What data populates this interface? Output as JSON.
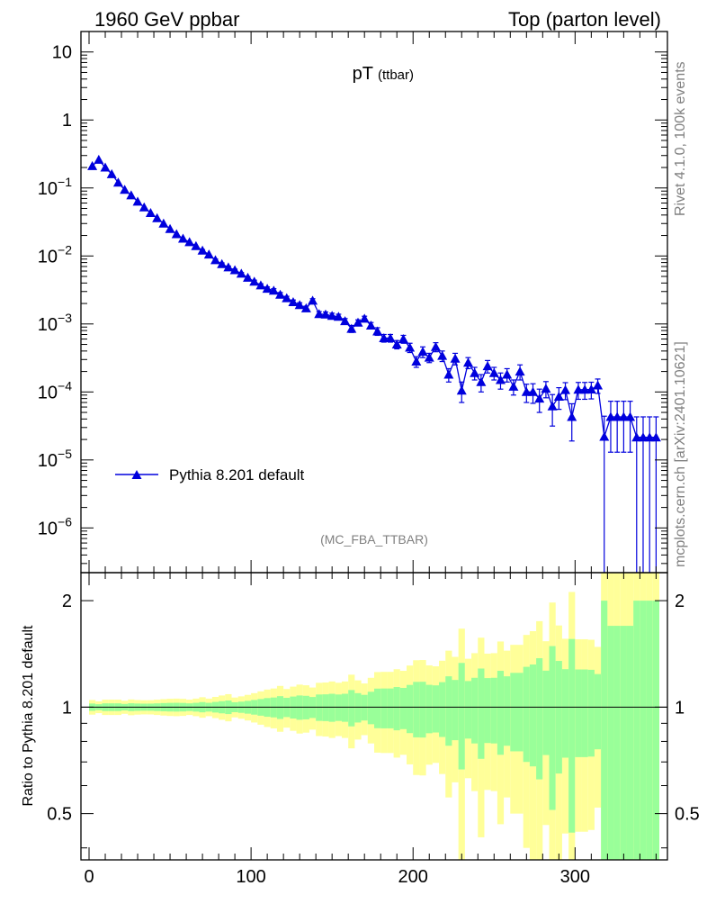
{
  "header": {
    "left": "1960 GeV ppbar",
    "right": "Top (parton level)"
  },
  "plot_title": {
    "main": "pT",
    "sub": "(ttbar)"
  },
  "side_labels": {
    "rivet": "Rivet 4.1.0,  100k events",
    "mcplots": "mcplots.cern.ch [arXiv:2401.10621]"
  },
  "analysis_id": "(MC_FBA_TTBAR)",
  "legend": {
    "label": "Pythia 8.201 default"
  },
  "ratio_ylabel": "Ratio to Pythia 8.201 default",
  "colors": {
    "series": "#0000dd",
    "band_outer": "#ffff99",
    "band_inner": "#99ff99"
  },
  "chart_data": {
    "type": "line",
    "title": "pT (ttbar)",
    "xlabel": "",
    "ylabel": "",
    "xlim": [
      -5,
      357
    ],
    "ylim": [
      2.2e-07,
      20
    ],
    "yscale": "log",
    "x_ticks": [
      "0",
      "100",
      "200",
      "300"
    ],
    "y_ticks": [
      {
        "value": 10,
        "label": "10"
      },
      {
        "value": 1,
        "label": "1"
      },
      {
        "value": 0.1,
        "base": "10",
        "exp": "−1"
      },
      {
        "value": 0.01,
        "base": "10",
        "exp": "−2"
      },
      {
        "value": 0.001,
        "base": "10",
        "exp": "−3"
      },
      {
        "value": 0.0001,
        "base": "10",
        "exp": "−4"
      },
      {
        "value": 1e-05,
        "base": "10",
        "exp": "−5"
      },
      {
        "value": 1e-06,
        "base": "10",
        "exp": "−6"
      }
    ],
    "series": [
      {
        "name": "Pythia 8.201 default",
        "marker": "triangle-up",
        "bin_width": 4,
        "x": [
          2,
          6,
          10,
          14,
          18,
          22,
          26,
          30,
          34,
          38,
          42,
          46,
          50,
          54,
          58,
          62,
          66,
          70,
          74,
          78,
          82,
          86,
          90,
          94,
          98,
          102,
          106,
          110,
          114,
          118,
          122,
          126,
          130,
          134,
          138,
          142,
          146,
          150,
          154,
          158,
          162,
          166,
          170,
          174,
          178,
          182,
          186,
          190,
          194,
          198,
          202,
          206,
          210,
          214,
          218,
          222,
          226,
          230,
          234,
          238,
          242,
          246,
          250,
          254,
          258,
          262,
          266,
          270,
          274,
          278,
          282,
          286,
          290,
          294,
          298,
          302,
          306,
          310,
          314,
          318,
          322,
          326,
          330,
          334,
          338,
          342,
          346,
          350
        ],
        "y": [
          0.21,
          0.26,
          0.2,
          0.16,
          0.12,
          0.094,
          0.078,
          0.063,
          0.052,
          0.043,
          0.036,
          0.03,
          0.025,
          0.021,
          0.018,
          0.016,
          0.014,
          0.012,
          0.0105,
          0.0087,
          0.0076,
          0.0068,
          0.0062,
          0.0055,
          0.0048,
          0.0042,
          0.0037,
          0.0033,
          0.0031,
          0.0027,
          0.0024,
          0.0021,
          0.0019,
          0.0017,
          0.0022,
          0.0014,
          0.00138,
          0.00132,
          0.00128,
          0.0011,
          0.00085,
          0.00105,
          0.0012,
          0.00095,
          0.00078,
          0.00062,
          0.00062,
          0.0005,
          0.0006,
          0.00045,
          0.00028,
          0.00039,
          0.00032,
          0.00046,
          0.00034,
          0.00018,
          0.00031,
          0.000105,
          0.00027,
          0.00019,
          0.00014,
          0.00024,
          0.00019,
          0.00015,
          0.00018,
          0.00012,
          0.0002,
          0.0001,
          0.0001,
          8e-05,
          0.000112,
          6.15e-05,
          8.55e-05,
          0.000107,
          4.3e-05,
          0.000108,
          0.000108,
          0.000109,
          0.000125,
          2.2e-05,
          4.3e-05,
          4.3e-05,
          4.3e-05,
          4.3e-05,
          2.15e-05,
          2.15e-05,
          2.15e-05,
          2.15e-05
        ],
        "y_err": [
          0.005,
          0.005,
          0.005,
          0.004,
          0.003,
          0.002,
          0.002,
          0.0015,
          0.0012,
          0.001,
          0.0009,
          0.0008,
          0.0007,
          0.0006,
          0.0005,
          0.0004,
          0.0004,
          0.0004,
          0.0003,
          0.0003,
          0.0003,
          0.0003,
          0.0002,
          0.0002,
          0.0002,
          0.0002,
          0.0002,
          0.0002,
          0.0002,
          0.0002,
          0.00015,
          0.00015,
          0.00015,
          0.00013,
          0.00015,
          0.00012,
          0.00012,
          0.00012,
          0.00011,
          0.0001,
          0.0001,
          0.0001,
          0.0001,
          0.0001,
          0.0001,
          8e-05,
          8e-05,
          7e-05,
          8e-05,
          7e-05,
          5e-05,
          7e-05,
          5e-05,
          7e-05,
          6e-05,
          4e-05,
          6e-05,
          3.5e-05,
          5e-05,
          4e-05,
          4e-05,
          5e-05,
          4e-05,
          4e-05,
          4e-05,
          3e-05,
          5e-05,
          3e-05,
          3.2e-05,
          3e-05,
          3e-05,
          3e-05,
          3e-05,
          3e-05,
          2.4e-05,
          3e-05,
          3e-05,
          3e-05,
          3e-05,
          2.2e-05,
          3e-05,
          3e-05,
          3e-05,
          3e-05,
          2.15e-05,
          2.15e-05,
          2.15e-05,
          2.15e-05
        ]
      }
    ],
    "ratio_panel": {
      "ylabel": "Ratio to Pythia 8.201 default",
      "ylim": [
        0.37,
        2.4
      ],
      "yscale": "log",
      "y_ticks": [
        "0.5",
        "1",
        "2"
      ],
      "reference": 1
    }
  }
}
